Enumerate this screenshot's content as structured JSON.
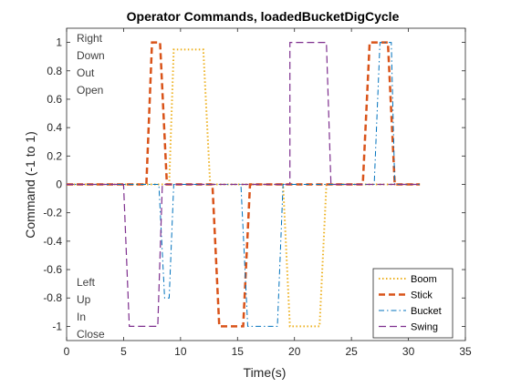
{
  "chart_data": {
    "type": "line",
    "title": "Operator Commands, loadedBucketDigCycle",
    "xlabel": "Time(s)",
    "ylabel": "Command (-1 to 1)",
    "xlim": [
      0,
      35
    ],
    "ylim": [
      -1.1,
      1.1
    ],
    "xticks": [
      0,
      5,
      10,
      15,
      20,
      25,
      30,
      35
    ],
    "xtick_labels": [
      "0",
      "5",
      "10",
      "15",
      "20",
      "25",
      "30",
      "35"
    ],
    "yticks": [
      -1,
      -0.8,
      -0.6,
      -0.4,
      -0.2,
      0,
      0.2,
      0.4,
      0.6,
      0.8,
      1
    ],
    "ytick_labels": [
      "-1",
      "-0.8",
      "-0.6",
      "-0.4",
      "-0.2",
      "0",
      "0.2",
      "0.4",
      "0.6",
      "0.8",
      "1"
    ],
    "grid": false,
    "legend_position": "bottom-right",
    "annotations": {
      "top": [
        "Right",
        "Down",
        "Out",
        "Open"
      ],
      "bottom": [
        "Left",
        "Up",
        "In",
        "Close"
      ]
    },
    "series": [
      {
        "name": "Boom",
        "color": "#EDB120",
        "style": "dotted",
        "x": [
          0,
          9.0,
          9.4,
          12.0,
          12.6,
          19.0,
          19.6,
          22.2,
          22.8,
          31
        ],
        "y": [
          0,
          0,
          0.95,
          0.95,
          0,
          0,
          -1,
          -1,
          0,
          0
        ]
      },
      {
        "name": "Stick",
        "color": "#D95319",
        "style": "dashed-thick",
        "x": [
          0,
          7.0,
          7.5,
          8.2,
          8.8,
          12.8,
          13.4,
          15.5,
          16.1,
          26.0,
          26.6,
          28.2,
          28.8,
          31
        ],
        "y": [
          0,
          0,
          1,
          1,
          0,
          0,
          -1,
          -1,
          0,
          0,
          1,
          1,
          0,
          0
        ]
      },
      {
        "name": "Bucket",
        "color": "#0072BD",
        "style": "dashdot",
        "x": [
          0,
          8.1,
          8.6,
          9.0,
          9.4,
          15.3,
          15.9,
          18.5,
          19.0,
          27.0,
          27.5,
          28.5,
          28.8,
          29.2,
          31
        ],
        "y": [
          0,
          0,
          -0.8,
          -0.8,
          0,
          0,
          -1,
          -1,
          0,
          0,
          1,
          1,
          0,
          0,
          0
        ]
      },
      {
        "name": "Swing",
        "color": "#7E2F8E",
        "style": "dashed",
        "x": [
          0,
          5.0,
          5.5,
          8.0,
          8.4,
          19.6,
          19.6,
          22.8,
          23.2,
          31
        ],
        "y": [
          0,
          0,
          -1,
          -1,
          0,
          0,
          1,
          1,
          0,
          0
        ]
      }
    ]
  }
}
